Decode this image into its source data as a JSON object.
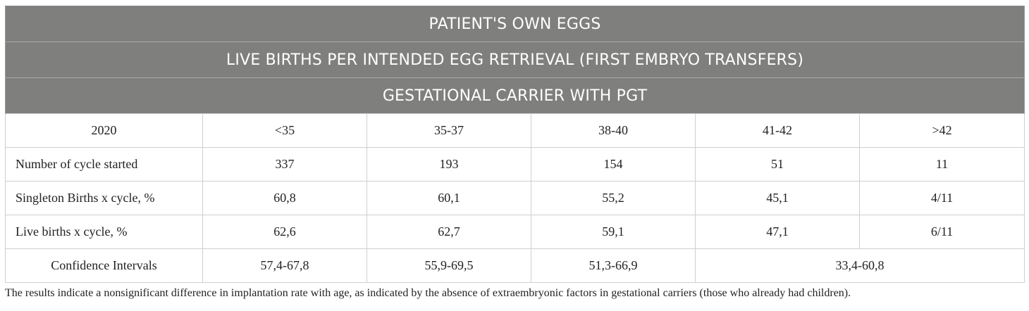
{
  "title_rows": [
    "PATIENT'S OWN EGGS",
    "LIVE BIRTHS PER INTENDED EGG RETRIEVAL (FIRST EMBRYO TRANSFERS)",
    "GESTATIONAL CARRIER WITH PGT"
  ],
  "columns": [
    "2020",
    "<35",
    "35-37",
    "38-40",
    "41-42",
    ">42"
  ],
  "rows": [
    {
      "label": "Number of cycle started",
      "values": [
        "337",
        "193",
        "154",
        "51",
        "11"
      ]
    },
    {
      "label": "Singleton Births x cycle, %",
      "values": [
        "60,8",
        "60,1",
        "55,2",
        "45,1",
        "4/11"
      ]
    },
    {
      "label": "Live births x cycle, %",
      "values": [
        "62,6",
        "62,7",
        "59,1",
        "47,1",
        "6/11"
      ]
    }
  ],
  "ci_row": {
    "label": "Confidence Intervals",
    "values": [
      "57,4-67,8",
      "55,9-69,5",
      "51,3-66,9",
      "33,4-60,8"
    ]
  },
  "footnote": "The results indicate a nonsignificant difference in implantation rate with age, as indicated by the absence of extraembryonic factors in gestational carriers (those who already had children)."
}
